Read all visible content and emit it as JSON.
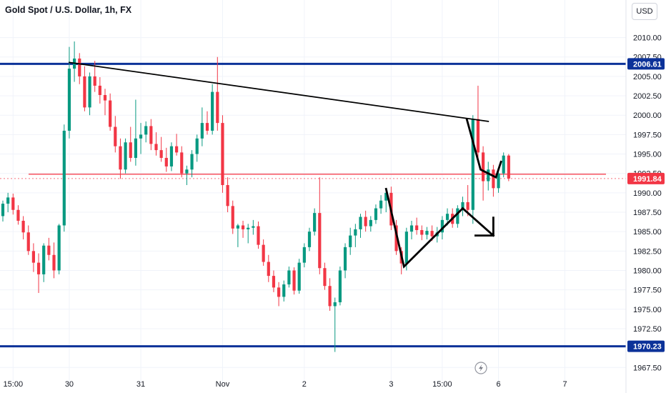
{
  "header": {
    "title": "Gold Spot / U.S. Dollar, 1h, FX",
    "currency": "USD"
  },
  "chart_data": {
    "type": "candlestick",
    "title": "Gold Spot / U.S. Dollar, 1h, FX",
    "ylim": [
      1965.5,
      2013
    ],
    "y_ticks": [
      "2010.00",
      "2007.50",
      "2005.00",
      "2002.50",
      "2000.00",
      "1997.50",
      "1995.00",
      "1992.50",
      "1990.00",
      "1987.50",
      "1985.00",
      "1982.50",
      "1980.00",
      "1977.50",
      "1975.00",
      "1972.50",
      "1967.50"
    ],
    "x_labels": [
      "15:00",
      "30",
      "31",
      "Nov",
      "2",
      "3",
      "15:00",
      "6",
      "7"
    ],
    "x_label_positions_in_bars": [
      2,
      13,
      27,
      43,
      59,
      76,
      86,
      97,
      110
    ],
    "price_labels": [
      {
        "value": 2006.61,
        "label": "2006.61",
        "color": "#0c3299"
      },
      {
        "value": 1991.84,
        "label": "1991.84",
        "color": "#f23645"
      },
      {
        "value": 1970.23,
        "label": "1970.23",
        "color": "#0c3299"
      }
    ],
    "horizontal_lines": [
      {
        "name": "resistance",
        "value": 2006.61,
        "color": "#0c3299"
      },
      {
        "name": "support",
        "value": 1970.23,
        "color": "#0c3299"
      },
      {
        "name": "mid-level",
        "value": 1992.4,
        "color": "#f7525f"
      }
    ],
    "colors": {
      "up": "#089981",
      "down": "#f23645",
      "current_price_line": "#f23645"
    },
    "candles": [
      [
        1987.0,
        1989.0,
        1986.3,
        1988.6
      ],
      [
        1988.6,
        1990.0,
        1987.5,
        1989.4
      ],
      [
        1989.4,
        1989.9,
        1987.2,
        1987.8
      ],
      [
        1987.8,
        1988.4,
        1985.9,
        1986.4
      ],
      [
        1986.4,
        1987.0,
        1984.0,
        1984.9
      ],
      [
        1984.9,
        1985.8,
        1982.0,
        1982.5
      ],
      [
        1982.5,
        1983.5,
        1979.8,
        1981.0
      ],
      [
        1981.0,
        1982.2,
        1977.1,
        1979.5
      ],
      [
        1979.5,
        1983.5,
        1978.5,
        1983.2
      ],
      [
        1983.2,
        1984.2,
        1981.3,
        1982.0
      ],
      [
        1982.0,
        1983.6,
        1979.0,
        1980.0
      ],
      [
        1980.0,
        1986.0,
        1979.5,
        1985.8
      ],
      [
        1985.8,
        1998.8,
        1985.0,
        1998.0
      ],
      [
        1998.0,
        2008.8,
        1997.0,
        2006.0
      ],
      [
        2006.0,
        2009.5,
        2004.3,
        2007.3
      ],
      [
        2007.3,
        2008.0,
        2004.0,
        2005.0
      ],
      [
        2005.0,
        2006.3,
        2000.5,
        2001.0
      ],
      [
        2001.0,
        2005.5,
        2000.0,
        2005.0
      ],
      [
        2005.0,
        2007.0,
        2003.0,
        2003.8
      ],
      [
        2003.8,
        2004.9,
        2001.5,
        2002.6
      ],
      [
        2002.6,
        2003.4,
        2000.0,
        2001.9
      ],
      [
        2001.9,
        2002.8,
        1998.0,
        1998.5
      ],
      [
        1998.5,
        1999.9,
        1995.2,
        1996.0
      ],
      [
        1996.0,
        1997.0,
        1991.8,
        1993.0
      ],
      [
        1993.0,
        1997.0,
        1992.5,
        1996.5
      ],
      [
        1996.5,
        1998.5,
        1994.0,
        1994.5
      ],
      [
        1994.5,
        2002.0,
        1993.5,
        1997.0
      ],
      [
        1997.0,
        1999.0,
        1995.0,
        1997.5
      ],
      [
        1997.5,
        1999.2,
        1996.5,
        1998.6
      ],
      [
        1998.6,
        1999.5,
        1995.5,
        1996.3
      ],
      [
        1996.3,
        1997.8,
        1994.8,
        1995.5
      ],
      [
        1995.5,
        1997.2,
        1994.0,
        1994.5
      ],
      [
        1994.5,
        1995.8,
        1992.7,
        1993.4
      ],
      [
        1993.4,
        1996.5,
        1992.8,
        1996.0
      ],
      [
        1996.0,
        1997.6,
        1994.8,
        1995.2
      ],
      [
        1995.2,
        1996.0,
        1992.0,
        1992.5
      ],
      [
        1992.5,
        1993.5,
        1991.0,
        1993.0
      ],
      [
        1993.0,
        1995.5,
        1992.0,
        1995.0
      ],
      [
        1995.0,
        1997.5,
        1994.0,
        1997.0
      ],
      [
        1997.0,
        2001.0,
        1996.0,
        1999.0
      ],
      [
        1999.0,
        2000.5,
        1997.5,
        1998.0
      ],
      [
        1998.0,
        2004.0,
        1997.5,
        2003.0
      ],
      [
        2003.0,
        2007.5,
        1998.0,
        1999.0
      ],
      [
        1999.0,
        2000.0,
        1990.0,
        1991.0
      ],
      [
        1991.0,
        1992.0,
        1987.5,
        1988.3
      ],
      [
        1988.3,
        1989.0,
        1984.7,
        1985.4
      ],
      [
        1985.4,
        1986.0,
        1983.0,
        1985.8
      ],
      [
        1985.8,
        1986.4,
        1984.2,
        1985.3
      ],
      [
        1985.3,
        1986.0,
        1983.5,
        1985.5
      ],
      [
        1985.5,
        1986.5,
        1984.6,
        1985.7
      ],
      [
        1985.7,
        1986.3,
        1982.8,
        1983.3
      ],
      [
        1983.3,
        1984.0,
        1980.6,
        1981.1
      ],
      [
        1981.1,
        1982.0,
        1978.5,
        1979.3
      ],
      [
        1979.3,
        1980.0,
        1977.2,
        1977.8
      ],
      [
        1977.8,
        1978.5,
        1975.4,
        1976.6
      ],
      [
        1976.6,
        1978.7,
        1976.0,
        1978.2
      ],
      [
        1978.2,
        1980.5,
        1977.8,
        1980.0
      ],
      [
        1980.0,
        1980.4,
        1976.9,
        1977.4
      ],
      [
        1977.4,
        1981.5,
        1977.0,
        1981.0
      ],
      [
        1981.0,
        1983.5,
        1980.4,
        1983.0
      ],
      [
        1983.0,
        1985.5,
        1982.5,
        1985.0
      ],
      [
        1985.0,
        1988.0,
        1984.5,
        1987.4
      ],
      [
        1987.4,
        1992.0,
        1979.5,
        1980.3
      ],
      [
        1980.3,
        1981.0,
        1977.5,
        1978.0
      ],
      [
        1978.0,
        1979.0,
        1974.8,
        1975.4
      ],
      [
        1975.4,
        1976.5,
        1969.5,
        1975.9
      ],
      [
        1975.9,
        1980.5,
        1975.5,
        1980.0
      ],
      [
        1980.0,
        1983.5,
        1979.0,
        1983.0
      ],
      [
        1983.0,
        1985.5,
        1982.0,
        1984.5
      ],
      [
        1984.5,
        1986.0,
        1983.0,
        1985.3
      ],
      [
        1985.3,
        1987.3,
        1984.2,
        1986.9
      ],
      [
        1986.9,
        1987.7,
        1985.0,
        1985.7
      ],
      [
        1985.7,
        1987.0,
        1985.0,
        1986.5
      ],
      [
        1986.5,
        1988.5,
        1986.0,
        1988.0
      ],
      [
        1988.0,
        1989.7,
        1987.3,
        1989.0
      ],
      [
        1989.0,
        1990.6,
        1987.5,
        1990.0
      ],
      [
        1990.0,
        1990.8,
        1985.2,
        1985.8
      ],
      [
        1985.8,
        1986.5,
        1982.0,
        1982.5
      ],
      [
        1982.5,
        1983.0,
        1979.5,
        1980.9
      ],
      [
        1980.9,
        1985.5,
        1980.0,
        1985.0
      ],
      [
        1985.0,
        1986.4,
        1984.0,
        1985.8
      ],
      [
        1985.8,
        1986.8,
        1984.6,
        1985.2
      ],
      [
        1985.2,
        1985.8,
        1983.9,
        1984.6
      ],
      [
        1984.6,
        1985.6,
        1984.0,
        1985.1
      ],
      [
        1985.1,
        1985.8,
        1983.8,
        1984.4
      ],
      [
        1984.4,
        1985.6,
        1983.6,
        1984.9
      ],
      [
        1984.9,
        1987.0,
        1984.0,
        1986.5
      ],
      [
        1986.5,
        1988.0,
        1985.8,
        1987.3
      ],
      [
        1987.3,
        1988.0,
        1985.5,
        1986.0
      ],
      [
        1986.0,
        1988.4,
        1985.5,
        1988.0
      ],
      [
        1988.0,
        1989.5,
        1987.0,
        1988.8
      ],
      [
        1988.8,
        1991.0,
        1987.0,
        1987.8
      ],
      [
        1987.8,
        2000.0,
        1986.0,
        1999.5
      ],
      [
        1999.5,
        2003.8,
        1994.0,
        1995.2
      ],
      [
        1995.2,
        1996.0,
        1989.0,
        1991.5
      ],
      [
        1991.5,
        1994.0,
        1990.3,
        1993.0
      ],
      [
        1993.0,
        1993.6,
        1989.5,
        1990.6
      ],
      [
        1990.6,
        1993.0,
        1990.0,
        1992.5
      ],
      [
        1992.5,
        1995.2,
        1992.0,
        1994.8
      ],
      [
        1994.8,
        1995.0,
        1991.5,
        1991.84
      ]
    ],
    "drawings": [
      {
        "name": "descending-trendline",
        "points": [
          [
            13,
            2006.8
          ],
          [
            95,
            1999.2
          ]
        ]
      },
      {
        "name": "path-down-to-low",
        "points": [
          [
            75,
            1990.5
          ],
          [
            78.5,
            1980.5
          ],
          [
            90,
            1988.0
          ]
        ]
      },
      {
        "name": "forecast-arrow-shaft",
        "points": [
          [
            90,
            1988.0
          ],
          [
            96,
            1984.5
          ]
        ]
      },
      {
        "name": "forecast-arrow-head",
        "points": [
          [
            92.5,
            1984.5
          ],
          [
            96,
            1984.5
          ],
          [
            96,
            1986.8
          ]
        ]
      },
      {
        "name": "spike-zigzag",
        "points": [
          [
            90.8,
            1999.5
          ],
          [
            93.5,
            1993.0
          ],
          [
            96.5,
            1992.0
          ],
          [
            97.5,
            1994.0
          ]
        ]
      }
    ],
    "bottom_icon": "lightning-bolt-icon"
  }
}
